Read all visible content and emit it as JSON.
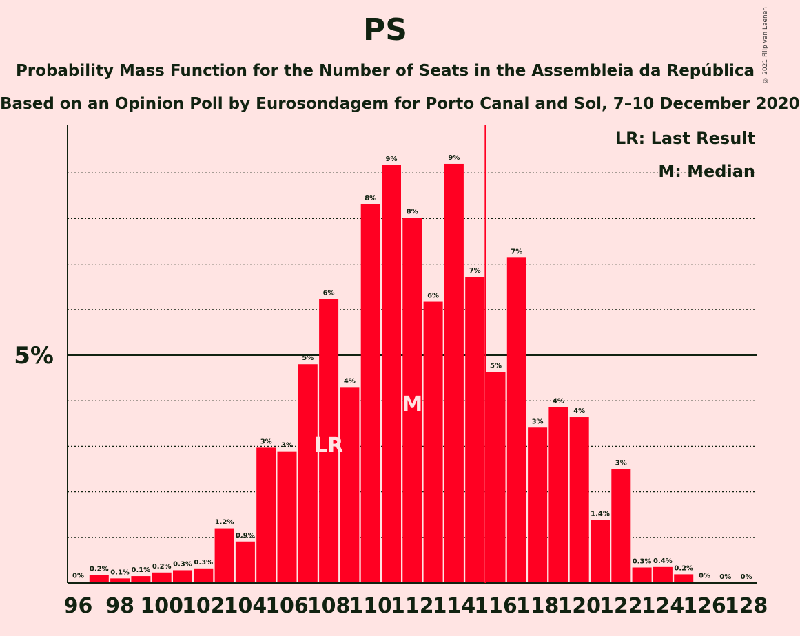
{
  "title": "PS",
  "subtitle": "Probability Mass Function for the Number of Seats in the Assembleia da República",
  "subtitle2": "Based on an Opinion Poll by Eurosondagem for Porto Canal and Sol, 7–10 December 2020",
  "copyright": "© 2021 Filip van Laenen",
  "legend": {
    "lr": "LR: Last Result",
    "m": "M: Median"
  },
  "chart_data": {
    "type": "bar",
    "x": [
      96,
      97,
      98,
      99,
      100,
      101,
      102,
      103,
      104,
      105,
      106,
      107,
      108,
      109,
      110,
      111,
      112,
      113,
      114,
      115,
      116,
      117,
      118,
      119,
      120,
      121,
      122,
      123,
      124,
      125,
      126,
      127,
      128
    ],
    "values": [
      0.02,
      0.17,
      0.1,
      0.15,
      0.23,
      0.28,
      0.32,
      1.2,
      0.91,
      2.97,
      2.89,
      4.8,
      6.23,
      4.3,
      8.31,
      9.17,
      8.01,
      6.17,
      9.2,
      6.72,
      4.63,
      7.14,
      3.41,
      3.86,
      3.64,
      1.38,
      2.5,
      0.34,
      0.35,
      0.19,
      0.02,
      0.0,
      0.0
    ],
    "labels": [
      "0%",
      "0.2%",
      "0.1%",
      "0.1%",
      "0.2%",
      "0.3%",
      "0.3%",
      "1.2%",
      "0.9%",
      "3%",
      "3%",
      "5%",
      "6%",
      "4%",
      "8%",
      "9%",
      "8%",
      "6%",
      "9%",
      "7%",
      "5%",
      "7%",
      "3%",
      "4%",
      "4%",
      "1.4%",
      "3%",
      "0.3%",
      "0.4%",
      "0.2%",
      "0%",
      "0%",
      "0%"
    ],
    "xticks": [
      "96",
      "98",
      "100",
      "102",
      "104",
      "106",
      "108",
      "110",
      "112",
      "114",
      "116",
      "118",
      "120",
      "122",
      "124",
      "126",
      "128"
    ],
    "ytick_label": "5%",
    "ylim": [
      0,
      10.2
    ],
    "last_result_seat": 108,
    "median_seat": 112,
    "majority_seat": 116,
    "colors": {
      "bar": "#ff0022",
      "axis": "#112211",
      "lr_line": "#ff0022",
      "marker_text": "#ffe4e3"
    },
    "marker_lr": "LR",
    "marker_m": "M"
  }
}
